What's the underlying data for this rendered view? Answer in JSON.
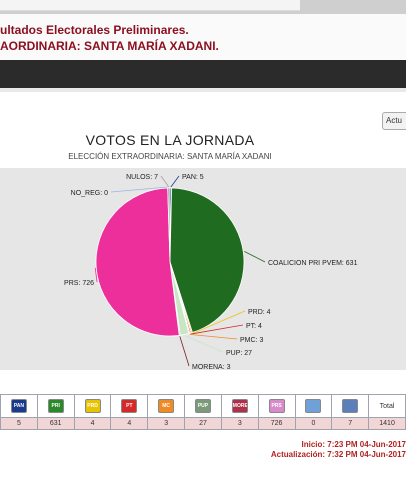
{
  "header": {
    "line1": "ultados Electorales Preliminares.",
    "line2": "AORDINARIA: SANTA MARÍA XADANI."
  },
  "update_button": "Actu",
  "chart_data": {
    "type": "pie",
    "title": "VOTOS EN LA JORNADA",
    "subtitle": "ELECCIÓN EXTRAORDINARIA: SANTA MARÍA XADANI",
    "slices": [
      {
        "label": "PAN: 5",
        "value": 5,
        "color": "#1a3a8c"
      },
      {
        "label": "COALICION PRI PVEM: 631",
        "value": 631,
        "color": "#1f6b1f"
      },
      {
        "label": "PRD: 4",
        "value": 4,
        "color": "#e8c400"
      },
      {
        "label": "PT: 4",
        "value": 4,
        "color": "#d42a2a"
      },
      {
        "label": "PMC: 3",
        "value": 3,
        "color": "#f08a24"
      },
      {
        "label": "PUP: 27",
        "value": 27,
        "color": "#c7e6c3"
      },
      {
        "label": "MORENA: 3",
        "value": 3,
        "color": "#7b1f1f"
      },
      {
        "label": "PRS: 726",
        "value": 726,
        "color": "#ec2f9a"
      },
      {
        "label": "NO_REG: 0",
        "value": 0,
        "color": "#9ab7e0"
      },
      {
        "label": "NULOS: 7",
        "value": 7,
        "color": "#a0a0a0"
      }
    ]
  },
  "table": {
    "headers": [
      "PAN",
      "PRI PVEM",
      "PRD",
      "PT",
      "MC",
      "PUP",
      "MORENA",
      "PRS",
      "",
      "",
      "Total"
    ],
    "logo_colors": [
      "#1a3a8c",
      "#2a8a2a",
      "#e8c400",
      "#d42a2a",
      "#f08a24",
      "#7a9a7a",
      "#b0304a",
      "#d98aca",
      "#6fa0d8",
      "#5b7fb8"
    ],
    "values": [
      "5",
      "631",
      "4",
      "4",
      "3",
      "27",
      "3",
      "726",
      "0",
      "7",
      "1410"
    ]
  },
  "footer": {
    "inicio": "Inicio: 7:23 PM 04-Jun-2017",
    "actualizacion": "Actualización: 7:32 PM 04-Jun-2017"
  }
}
